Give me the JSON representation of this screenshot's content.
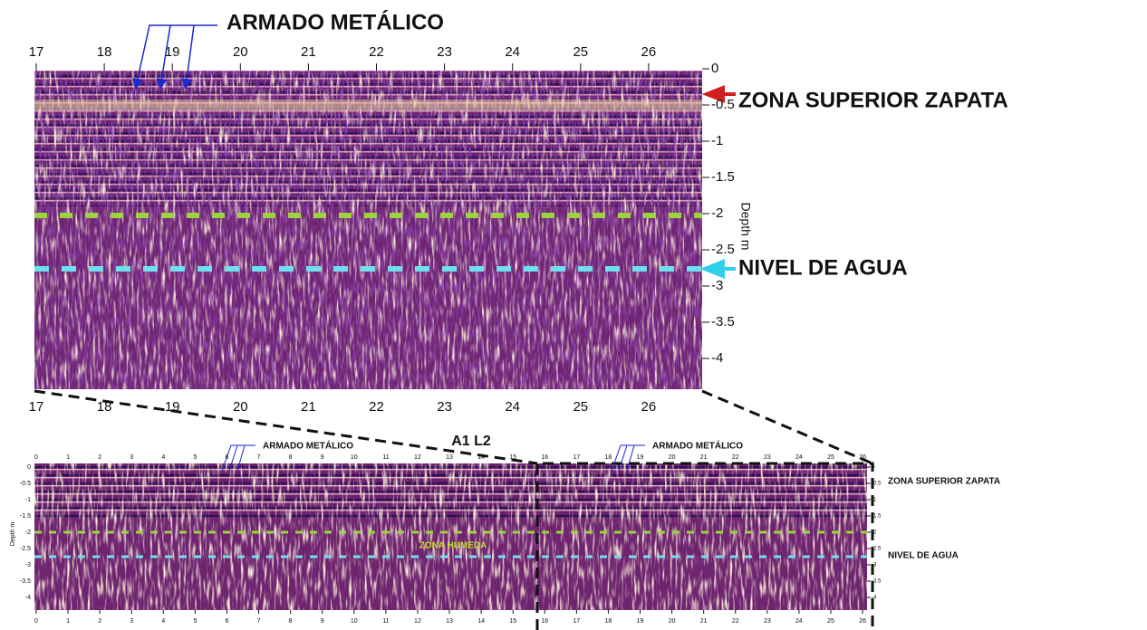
{
  "top_panel": {
    "x_ticks": [
      17,
      18,
      19,
      20,
      21,
      22,
      23,
      24,
      25,
      26
    ],
    "depth_ticks": [
      0,
      -0.5,
      -1,
      -1.5,
      -2,
      -2.5,
      -3,
      -3.5,
      -4
    ],
    "depth_label": "Depth m",
    "annotations": {
      "metal": "ARMADO METÁLICO",
      "footing": "ZONA SUPERIOR ZAPATA",
      "water": "NIVEL DE AGUA"
    }
  },
  "bottom_panel": {
    "title": "A1 L2",
    "x_ticks": [
      0,
      1,
      2,
      3,
      4,
      5,
      6,
      7,
      8,
      9,
      10,
      11,
      12,
      13,
      14,
      15,
      16,
      17,
      18,
      19,
      20,
      21,
      22,
      23,
      24,
      25,
      26
    ],
    "depth_ticks": [
      0,
      -0.5,
      -1,
      -1.5,
      -2,
      -2.5,
      -3,
      -3.5,
      -4
    ],
    "depth_label": "Depth m",
    "annotations": {
      "metal_left": "ARMADO METÁLICO",
      "metal_right": "ARMADO METÁLICO",
      "wet": "ZONA HUMEDA",
      "footing": "ZONA SUPERIOR ZAPATA",
      "water": "NIVEL DE AGUA"
    }
  }
}
